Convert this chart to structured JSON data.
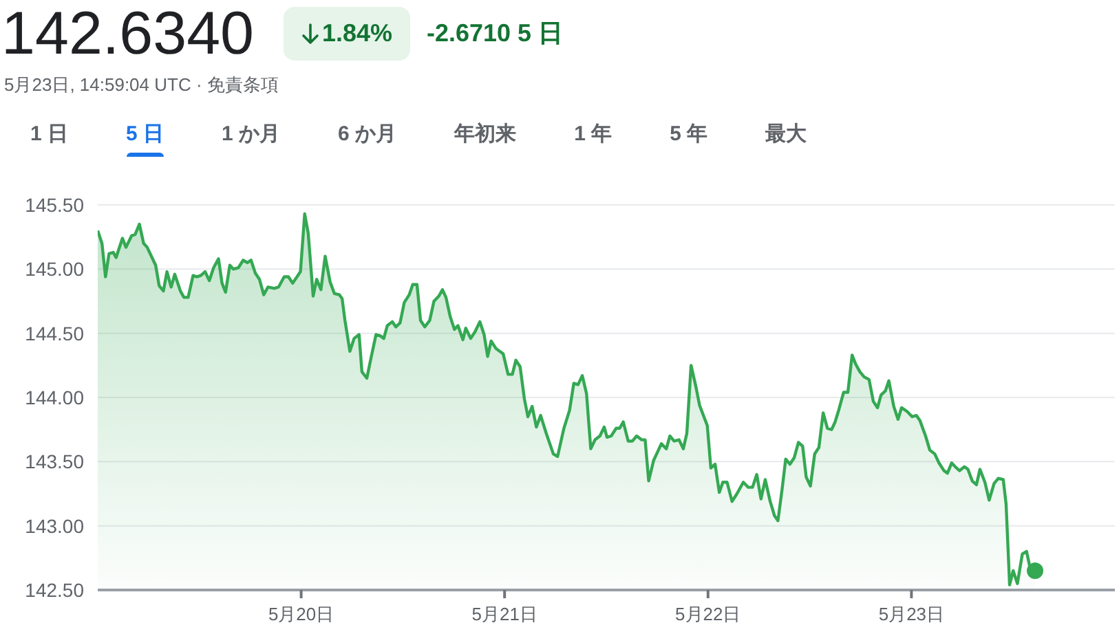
{
  "chart_data": {
    "type": "area",
    "title": "142.6340",
    "subtitle": "5月23日, 14:59:04 UTC · 免責条項",
    "annotations": [
      "1.84%",
      "-2.6710 5 日",
      "1 日",
      "5 日",
      "1 か月",
      "6 か月",
      "年初来",
      "1 年",
      "5 年",
      "最大"
    ],
    "xlim": [
      "--05-19",
      "--05-24"
    ],
    "xticks": [
      {
        "value": "--05-20",
        "label": "5月20日"
      },
      {
        "value": "--05-21",
        "label": "5月21日"
      },
      {
        "value": "--05-22",
        "label": "5月22日"
      },
      {
        "value": "--05-23",
        "label": "5月23日"
      }
    ],
    "ylim": [
      142.5,
      145.5
    ],
    "yticks": [
      {
        "value": 142.5,
        "label": "142.50"
      },
      {
        "value": 143,
        "label": "143.00"
      },
      {
        "value": 143.5,
        "label": "143.50"
      },
      {
        "value": 144,
        "label": "144.00"
      },
      {
        "value": 144.5,
        "label": "144.50"
      },
      {
        "value": 145,
        "label": "145.00"
      },
      {
        "value": 145.5,
        "label": "145.50"
      }
    ],
    "grid": "y",
    "series": [
      {
        "color": "#34a853",
        "x": [
          "--05-19T00:00",
          "--05-19T00:30",
          "--05-19T00:55",
          "--05-19T01:20",
          "--05-19T01:50",
          "--05-19T02:10",
          "--05-19T02:55",
          "--05-19T03:20",
          "--05-19T04:00",
          "--05-19T04:25",
          "--05-19T04:55",
          "--05-19T05:25",
          "--05-19T05:50",
          "--05-19T06:50",
          "--05-19T07:15",
          "--05-19T07:45",
          "--05-19T08:10",
          "--05-19T08:40",
          "--05-19T09:05",
          "--05-19T09:45",
          "--05-19T10:10",
          "--05-19T10:40",
          "--05-19T11:15",
          "--05-19T11:40",
          "--05-19T12:10",
          "--05-19T12:40",
          "--05-19T13:10",
          "--05-19T13:40",
          "--05-19T14:15",
          "--05-19T14:40",
          "--05-19T15:05",
          "--05-19T15:35",
          "--05-19T16:00",
          "--05-19T16:35",
          "--05-19T17:10",
          "--05-19T17:40",
          "--05-19T18:05",
          "--05-19T18:35",
          "--05-19T19:05",
          "--05-19T19:35",
          "--05-19T20:05",
          "--05-19T20:50",
          "--05-19T21:20",
          "--05-19T22:00",
          "--05-19T22:30",
          "--05-19T23:00",
          "--05-19T23:55",
          "--05-20T00:25",
          "--05-20T00:50",
          "--05-20T01:25",
          "--05-20T01:50",
          "--05-20T02:20",
          "--05-20T02:50",
          "--05-20T03:25",
          "--05-20T03:55",
          "--05-20T04:30",
          "--05-20T04:50",
          "--05-20T05:10",
          "--05-20T05:45",
          "--05-20T06:15",
          "--05-20T06:50",
          "--05-20T07:10",
          "--05-20T07:45",
          "--05-20T08:15",
          "--05-20T08:50",
          "--05-20T09:20",
          "--05-20T09:45",
          "--05-20T10:10",
          "--05-20T10:45",
          "--05-20T11:10",
          "--05-20T11:40",
          "--05-20T12:10",
          "--05-20T12:45",
          "--05-20T13:10",
          "--05-20T13:40",
          "--05-20T14:05",
          "--05-20T14:35",
          "--05-20T15:10",
          "--05-20T15:40",
          "--05-20T16:15",
          "--05-20T16:40",
          "--05-20T17:05",
          "--05-20T17:35",
          "--05-20T18:05",
          "--05-20T18:30",
          "--05-20T19:05",
          "--05-20T19:25",
          "--05-20T20:00",
          "--05-20T20:30",
          "--05-20T21:05",
          "--05-20T21:35",
          "--05-20T22:00",
          "--05-20T22:25",
          "--05-20T23:00",
          "--05-20T23:50",
          "--05-21T00:25",
          "--05-21T00:55",
          "--05-21T01:20",
          "--05-21T01:50",
          "--05-21T02:20",
          "--05-21T02:45",
          "--05-21T03:15",
          "--05-21T03:45",
          "--05-21T04:15",
          "--05-21T04:55",
          "--05-21T05:45",
          "--05-21T06:15",
          "--05-21T07:00",
          "--05-21T07:40",
          "--05-21T08:10",
          "--05-21T08:40",
          "--05-21T09:10",
          "--05-21T09:40",
          "--05-21T10:10",
          "--05-21T10:40",
          "--05-21T11:15",
          "--05-21T11:45",
          "--05-21T12:05",
          "--05-21T12:35",
          "--05-21T13:10",
          "--05-21T13:35",
          "--05-21T14:00",
          "--05-21T14:35",
          "--05-21T15:05",
          "--05-21T15:35",
          "--05-21T16:10",
          "--05-21T16:35",
          "--05-21T17:00",
          "--05-21T17:35",
          "--05-21T18:05",
          "--05-21T18:30",
          "--05-21T19:05",
          "--05-21T19:30",
          "--05-21T20:00",
          "--05-21T20:35",
          "--05-21T21:05",
          "--05-21T21:30",
          "--05-21T22:00",
          "--05-21T22:35",
          "--05-21T23:00",
          "--05-21T23:55",
          "--05-22T00:20",
          "--05-22T00:50",
          "--05-22T01:20",
          "--05-22T01:45",
          "--05-22T02:15",
          "--05-22T02:50",
          "--05-22T03:25",
          "--05-22T04:10",
          "--05-22T04:45",
          "--05-22T05:15",
          "--05-22T05:45",
          "--05-22T06:15",
          "--05-22T06:45",
          "--05-22T07:20",
          "--05-22T07:50",
          "--05-22T08:15",
          "--05-22T08:45",
          "--05-22T09:10",
          "--05-22T09:40",
          "--05-22T10:10",
          "--05-22T10:40",
          "--05-22T11:10",
          "--05-22T11:35",
          "--05-22T12:05",
          "--05-22T12:35",
          "--05-22T13:05",
          "--05-22T13:35",
          "--05-22T14:05",
          "--05-22T14:35",
          "--05-22T15:00",
          "--05-22T15:25",
          "--05-22T16:00",
          "--05-22T16:30",
          "--05-22T17:00",
          "--05-22T17:25",
          "--05-22T17:55",
          "--05-22T18:25",
          "--05-22T19:00",
          "--05-22T19:30",
          "--05-22T20:00",
          "--05-22T20:25",
          "--05-22T20:55",
          "--05-22T21:20",
          "--05-22T21:55",
          "--05-22T22:25",
          "--05-22T22:50",
          "--05-22T23:30",
          "--05-23T00:05",
          "--05-23T00:35",
          "--05-23T01:00",
          "--05-23T01:40",
          "--05-23T02:10",
          "--05-23T02:45",
          "--05-23T03:15",
          "--05-23T03:50",
          "--05-23T04:15",
          "--05-23T04:45",
          "--05-23T05:10",
          "--05-23T05:40",
          "--05-23T06:15",
          "--05-23T06:40",
          "--05-23T07:10",
          "--05-23T07:40",
          "--05-23T08:05",
          "--05-23T08:40",
          "--05-23T09:10",
          "--05-23T09:45",
          "--05-23T10:15",
          "--05-23T10:50",
          "--05-23T11:10",
          "--05-23T11:35",
          "--05-23T12:00",
          "--05-23T12:30",
          "--05-23T13:05",
          "--05-23T13:35",
          "--05-23T14:00",
          "--05-23T14:35"
        ],
        "values": [
          145.3,
          145.2,
          144.94,
          145.12,
          145.13,
          145.09,
          145.24,
          145.17,
          145.26,
          145.27,
          145.35,
          145.2,
          145.17,
          145.03,
          144.87,
          144.83,
          144.98,
          144.86,
          144.96,
          144.83,
          144.78,
          144.78,
          144.95,
          144.94,
          144.95,
          144.98,
          144.91,
          145.01,
          145.08,
          144.89,
          144.82,
          145.03,
          145.0,
          145.01,
          145.07,
          145.05,
          145.07,
          144.97,
          144.92,
          144.8,
          144.86,
          144.85,
          144.86,
          144.94,
          144.94,
          144.89,
          144.98,
          145.43,
          145.28,
          144.79,
          144.92,
          144.84,
          145.1,
          144.9,
          144.81,
          144.8,
          144.77,
          144.6,
          144.36,
          144.46,
          144.49,
          144.2,
          144.15,
          144.31,
          144.49,
          144.48,
          144.46,
          144.56,
          144.59,
          144.55,
          144.58,
          144.74,
          144.8,
          144.88,
          144.88,
          144.6,
          144.55,
          144.6,
          144.75,
          144.79,
          144.84,
          144.78,
          144.63,
          144.53,
          144.56,
          144.45,
          144.54,
          144.46,
          144.51,
          144.59,
          144.49,
          144.32,
          144.44,
          144.38,
          144.34,
          144.18,
          144.18,
          144.29,
          144.24,
          143.99,
          143.85,
          143.93,
          143.77,
          143.86,
          143.72,
          143.56,
          143.54,
          143.76,
          143.9,
          144.11,
          144.1,
          144.17,
          144.03,
          143.6,
          143.67,
          143.7,
          143.77,
          143.69,
          143.7,
          143.76,
          143.76,
          143.81,
          143.66,
          143.66,
          143.7,
          143.67,
          143.67,
          143.35,
          143.51,
          143.58,
          143.64,
          143.6,
          143.7,
          143.66,
          143.67,
          143.6,
          143.72,
          144.25,
          144.08,
          143.94,
          143.78,
          143.45,
          143.48,
          143.26,
          143.34,
          143.34,
          143.19,
          143.25,
          143.34,
          143.3,
          143.3,
          143.4,
          143.21,
          143.36,
          143.19,
          143.08,
          143.04,
          143.29,
          143.52,
          143.48,
          143.53,
          143.65,
          143.62,
          143.38,
          143.31,
          143.56,
          143.61,
          143.88,
          143.76,
          143.75,
          143.81,
          143.9,
          144.04,
          144.04,
          144.33,
          144.26,
          144.2,
          144.16,
          144.14,
          143.97,
          143.92,
          144.02,
          144.05,
          144.13,
          143.93,
          143.83,
          143.92,
          143.89,
          143.85,
          143.86,
          143.82,
          143.7,
          143.59,
          143.56,
          143.49,
          143.43,
          143.41,
          143.49,
          143.46,
          143.43,
          143.46,
          143.44,
          143.35,
          143.32,
          143.44,
          143.34,
          143.2,
          143.33,
          143.37,
          143.36,
          143.17,
          142.54,
          142.65,
          142.55,
          142.78,
          142.8,
          142.67,
          142.65
        ]
      },
      {
        "type": "scatter",
        "color": "#34a853",
        "marker": "circle",
        "x": [
          "--05-23T14:35"
        ],
        "values": [
          142.65
        ]
      }
    ]
  }
}
